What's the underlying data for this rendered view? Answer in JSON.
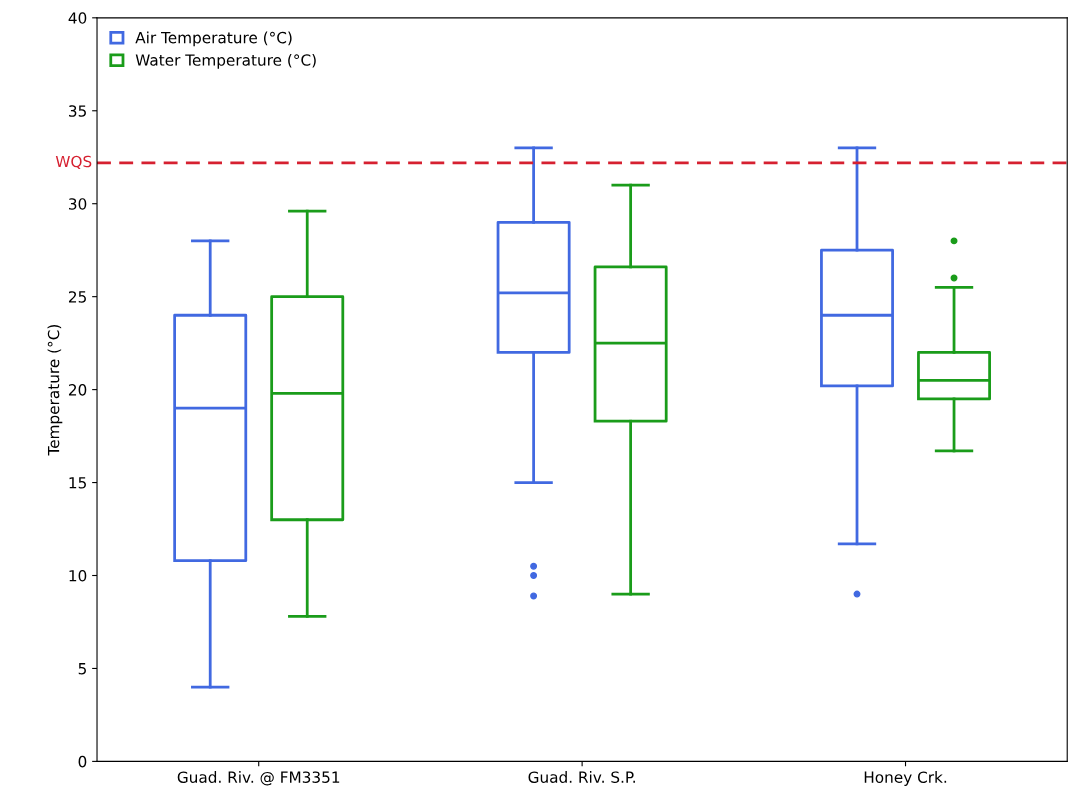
{
  "chart_data": {
    "type": "box",
    "ylabel": "Temperature (°C)",
    "categories": [
      "Guad. Riv. @ FM3351",
      "Guad. Riv. S.P.",
      "Honey Crk."
    ],
    "series": [
      {
        "name": "Air Temperature (°C)",
        "color": "#4169e1",
        "boxes": [
          {
            "low": 4,
            "q1": 10.8,
            "median": 19,
            "q3": 24,
            "high": 28
          },
          {
            "low": 15,
            "q1": 22,
            "median": 25.2,
            "q3": 29,
            "high": 33,
            "outliers": [
              10.5,
              10,
              8.9
            ]
          },
          {
            "low": 11.7,
            "q1": 20.2,
            "median": 24,
            "q3": 27.5,
            "high": 33,
            "outliers": [
              9
            ]
          }
        ]
      },
      {
        "name": "Water Temperature (°C)",
        "color": "#1a9c1a",
        "boxes": [
          {
            "low": 7.8,
            "q1": 13,
            "median": 19.8,
            "q3": 25,
            "high": 29.6
          },
          {
            "low": 9,
            "q1": 18.3,
            "median": 22.5,
            "q3": 26.6,
            "high": 31
          },
          {
            "low": 16.7,
            "q1": 19.5,
            "median": 20.5,
            "q3": 22,
            "high": 25.5,
            "outliers": [
              28,
              26
            ]
          }
        ]
      }
    ],
    "ylim": [
      0,
      40
    ],
    "yticks": [
      0,
      5,
      10,
      15,
      20,
      25,
      30,
      35,
      40
    ],
    "ref_lines": [
      {
        "axis": "y",
        "value": 32.2,
        "label": "WQS",
        "color": "#d62030",
        "line_style": "dashed"
      }
    ],
    "grid": false,
    "legend": "top left"
  }
}
